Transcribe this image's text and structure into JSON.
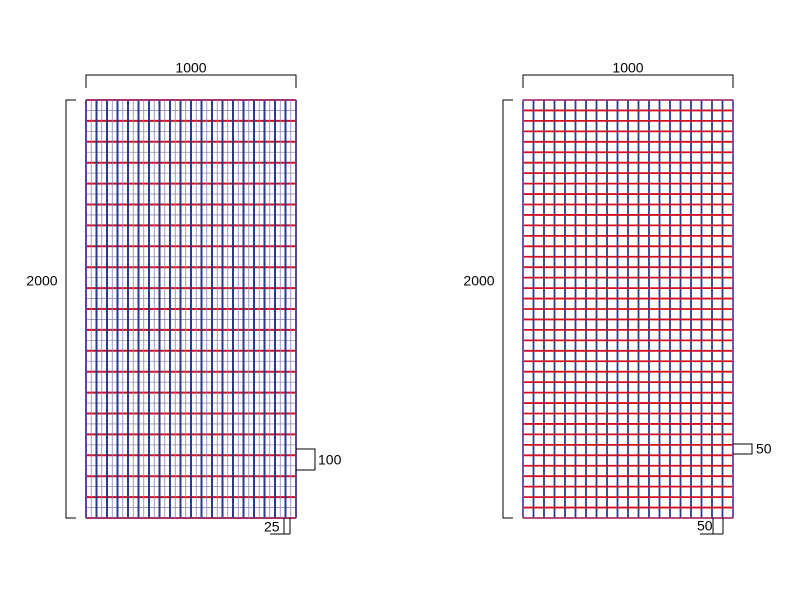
{
  "panels": [
    {
      "width": "1000",
      "height": "2000",
      "side_spacing": "100",
      "bottom_spacing": "25"
    },
    {
      "width": "1000",
      "height": "2000",
      "side_spacing": "50",
      "bottom_spacing": "50"
    }
  ]
}
